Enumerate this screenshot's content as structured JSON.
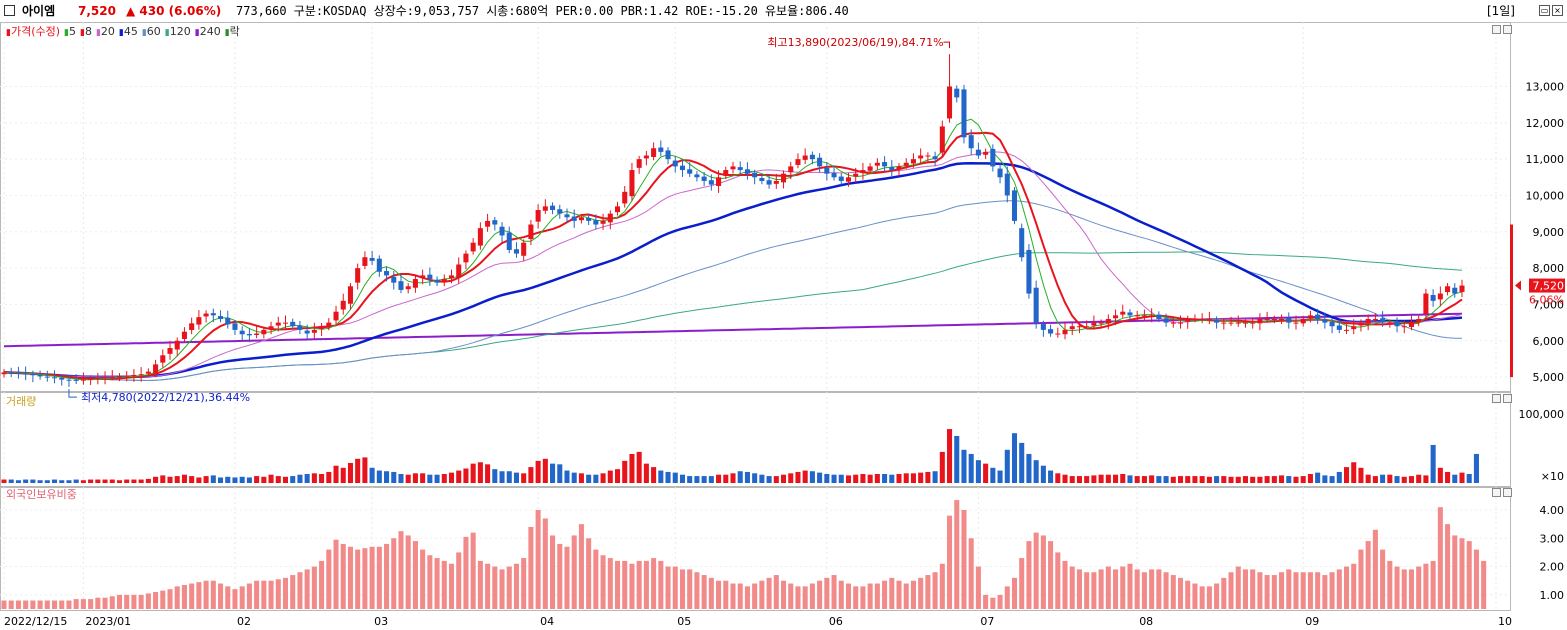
{
  "header": {
    "name": "아이엠",
    "price": "7,520",
    "change": "▲ 430 (6.06%)",
    "info": "773,660  구분:KOSDAQ 상장수:9,053,757 시총:680억 PER:0.00 PBR:1.42 ROE:-15.20 유보율:806.40",
    "period": "[1일]"
  },
  "colors": {
    "up": "#e8141c",
    "down": "#2166c8",
    "ma5": "#27b027",
    "ma8": "#e8141c",
    "ma20": "#cc66cc",
    "ma45": "#0a1ecc",
    "ma60": "#6a8ec8",
    "ma120": "#3aa88a",
    "ma240": "#8a1ec8",
    "foreign": "#f28a8a",
    "label": "#c8a020"
  },
  "price_panel": {
    "legend": [
      {
        "t": "가격(수정)",
        "c": "#e8141c"
      },
      {
        "t": "5",
        "c": "#27b027"
      },
      {
        "t": "8",
        "c": "#e8141c"
      },
      {
        "t": "20",
        "c": "#cc66cc"
      },
      {
        "t": "45",
        "c": "#0a1ecc"
      },
      {
        "t": "60",
        "c": "#6a8ec8"
      },
      {
        "t": "120",
        "c": "#3aa88a"
      },
      {
        "t": "240",
        "c": "#8a1ec8"
      },
      {
        "t": "락",
        "c": "#2e8b2e"
      }
    ],
    "high_label": "최고13,890(2023/06/19),84.71%",
    "low_label": "최저4,780(2022/12/21),36.44%",
    "last_price_tag": "7,520",
    "last_change_tag": "6.06%"
  },
  "volume_panel": {
    "label": "거래량",
    "multiplier": "×10"
  },
  "foreign_panel": {
    "label": "외국인보유비중"
  },
  "chart_data": [
    {
      "type": "candlestick",
      "title": "가격(수정)",
      "y_ticks": [
        "13,000",
        "12,000",
        "11,000",
        "10,000",
        "9,000",
        "8,000",
        "7,000",
        "6,000",
        "5,000"
      ],
      "ylim": [
        4700,
        14500
      ],
      "x_ticks": [
        "2022/12/15",
        "2023/01",
        "02",
        "03",
        "04",
        "05",
        "06",
        "07",
        "08",
        "09",
        "10"
      ],
      "high": {
        "value": 13890,
        "date": "2023/06/19"
      },
      "low": {
        "value": 4780,
        "date": "2022/12/21"
      },
      "last": 7520,
      "close": [
        5130,
        5120,
        5100,
        5080,
        5050,
        5020,
        4990,
        4970,
        4930,
        4920,
        4900,
        4930,
        4960,
        4990,
        5000,
        5000,
        5020,
        5040,
        5060,
        5080,
        5150,
        5350,
        5600,
        5800,
        6000,
        6250,
        6480,
        6650,
        6750,
        6700,
        6600,
        6450,
        6300,
        6180,
        6150,
        6200,
        6300,
        6400,
        6500,
        6500,
        6400,
        6300,
        6200,
        6300,
        6400,
        6500,
        6800,
        7100,
        7500,
        8000,
        8300,
        8200,
        7900,
        7800,
        7600,
        7400,
        7500,
        7700,
        7800,
        7700,
        7600,
        7700,
        7800,
        8100,
        8400,
        8700,
        9100,
        9300,
        9200,
        8900,
        8500,
        8400,
        8700,
        9200,
        9600,
        9700,
        9600,
        9500,
        9400,
        9300,
        9400,
        9300,
        9200,
        9300,
        9500,
        9700,
        10100,
        10700,
        11000,
        11100,
        11300,
        11200,
        11000,
        10800,
        10700,
        10600,
        10500,
        10400,
        10300,
        10500,
        10700,
        10800,
        10700,
        10600,
        10500,
        10400,
        10300,
        10400,
        10600,
        10800,
        11000,
        11100,
        11000,
        10800,
        10600,
        10500,
        10400,
        10500,
        10600,
        10700,
        10800,
        10900,
        10800,
        10700,
        10800,
        10900,
        11000,
        11100,
        11100,
        11000,
        11900,
        13000,
        12700,
        11600,
        11300,
        11100,
        11200,
        10800,
        10500,
        10000,
        9300,
        8300,
        7300,
        6500,
        6300,
        6200,
        6200,
        6300,
        6400,
        6400,
        6400,
        6500,
        6500,
        6600,
        6700,
        6800,
        6700,
        6700,
        6700,
        6700,
        6600,
        6500,
        6500,
        6500,
        6600,
        6600,
        6600,
        6600,
        6500,
        6500,
        6500,
        6500,
        6500,
        6500,
        6600,
        6600,
        6600,
        6600,
        6500,
        6500,
        6600,
        6700,
        6600,
        6500,
        6400,
        6300,
        6300,
        6400,
        6500,
        6600,
        6600,
        6500,
        6500,
        6400,
        6400,
        6500,
        6600,
        7300,
        7100,
        7300,
        7500,
        7300,
        7520
      ],
      "series": [
        {
          "name": "5",
          "period": 5
        },
        {
          "name": "8",
          "period": 8
        },
        {
          "name": "20",
          "period": 20
        },
        {
          "name": "45",
          "period": 45
        },
        {
          "name": "60",
          "period": 60
        },
        {
          "name": "120",
          "period": 120
        },
        {
          "name": "240",
          "period": 240
        }
      ]
    },
    {
      "type": "bar",
      "title": "거래량",
      "y_ticks": [
        "100,000"
      ],
      "ylim": [
        0,
        120000
      ],
      "values": [
        5000,
        5000,
        4000,
        5000,
        5000,
        4000,
        4000,
        5000,
        4000,
        4000,
        5000,
        4000,
        5000,
        5000,
        5000,
        5000,
        4000,
        5000,
        5000,
        5000,
        6000,
        9000,
        11000,
        9000,
        10000,
        12000,
        10000,
        8000,
        10000,
        11000,
        8000,
        9000,
        8000,
        9000,
        8000,
        10000,
        9000,
        12000,
        10000,
        9000,
        10000,
        12000,
        13000,
        14000,
        13000,
        16000,
        25000,
        22000,
        29000,
        35000,
        37000,
        22000,
        18000,
        17000,
        16000,
        13000,
        12000,
        14000,
        14000,
        12000,
        12000,
        13000,
        15000,
        18000,
        21000,
        28000,
        30000,
        27000,
        20000,
        17000,
        17000,
        15000,
        14000,
        23000,
        32000,
        35000,
        28000,
        27000,
        18000,
        15000,
        14000,
        12000,
        12000,
        14000,
        18000,
        20000,
        32000,
        42000,
        45000,
        28000,
        23000,
        18000,
        16000,
        15000,
        12000,
        10000,
        10000,
        10000,
        10000,
        12000,
        12000,
        14000,
        17000,
        16000,
        14000,
        12000,
        10000,
        10000,
        12000,
        14000,
        16000,
        18000,
        17000,
        15000,
        13000,
        12000,
        12000,
        11000,
        12000,
        13000,
        12000,
        13000,
        13000,
        12000,
        13000,
        14000,
        14000,
        15000,
        16000,
        17000,
        45000,
        78000,
        68000,
        48000,
        42000,
        33000,
        28000,
        22000,
        18000,
        48000,
        72000,
        58000,
        42000,
        33000,
        25000,
        18000,
        14000,
        12000,
        10000,
        10000,
        10000,
        11000,
        12000,
        12000,
        12000,
        13000,
        11000,
        10000,
        10000,
        11000,
        10000,
        10000,
        9000,
        10000,
        10000,
        10000,
        10000,
        9000,
        10000,
        10000,
        9000,
        9000,
        10000,
        9000,
        9000,
        10000,
        10000,
        11000,
        10000,
        9000,
        10000,
        13000,
        15000,
        11000,
        10000,
        16000,
        23000,
        30000,
        22000,
        12000,
        10000,
        12000,
        12000,
        10000,
        9000,
        10000,
        12000,
        11000,
        55000,
        22000,
        16000,
        12000,
        15000,
        13000,
        42000
      ]
    },
    {
      "type": "bar",
      "title": "외국인보유비중",
      "y_ticks": [
        "4.00",
        "3.00",
        "2.00",
        "1.00"
      ],
      "ylim": [
        0.5,
        4.6
      ],
      "values": [
        0.8,
        0.8,
        0.8,
        0.8,
        0.8,
        0.8,
        0.8,
        0.8,
        0.8,
        0.8,
        0.85,
        0.85,
        0.85,
        0.9,
        0.9,
        0.95,
        1.0,
        1.0,
        1.0,
        1.0,
        1.05,
        1.1,
        1.15,
        1.2,
        1.3,
        1.35,
        1.4,
        1.45,
        1.5,
        1.5,
        1.4,
        1.3,
        1.2,
        1.3,
        1.4,
        1.5,
        1.5,
        1.5,
        1.55,
        1.6,
        1.7,
        1.8,
        1.9,
        2.0,
        2.2,
        2.6,
        2.95,
        2.8,
        2.7,
        2.6,
        2.65,
        2.7,
        2.7,
        2.8,
        3.0,
        3.25,
        3.1,
        2.9,
        2.6,
        2.4,
        2.3,
        2.2,
        2.1,
        2.5,
        3.05,
        3.2,
        2.2,
        2.1,
        2.0,
        1.9,
        2.0,
        2.1,
        2.3,
        3.4,
        4.0,
        3.7,
        3.1,
        2.8,
        2.7,
        3.1,
        3.5,
        3.0,
        2.6,
        2.4,
        2.3,
        2.2,
        2.2,
        2.1,
        2.2,
        2.2,
        2.3,
        2.2,
        2.0,
        2.0,
        1.9,
        1.9,
        1.8,
        1.7,
        1.6,
        1.5,
        1.5,
        1.4,
        1.4,
        1.3,
        1.4,
        1.5,
        1.6,
        1.7,
        1.5,
        1.4,
        1.3,
        1.3,
        1.4,
        1.5,
        1.6,
        1.7,
        1.5,
        1.4,
        1.3,
        1.3,
        1.4,
        1.4,
        1.5,
        1.6,
        1.5,
        1.4,
        1.5,
        1.6,
        1.7,
        1.8,
        2.1,
        3.8,
        4.35,
        4.0,
        3.0,
        2.0,
        1.0,
        0.9,
        1.0,
        1.3,
        1.6,
        2.3,
        2.9,
        3.2,
        3.1,
        2.9,
        2.5,
        2.2,
        2.0,
        1.9,
        1.8,
        1.8,
        1.9,
        2.0,
        1.9,
        2.0,
        2.1,
        1.9,
        1.8,
        1.9,
        1.9,
        1.8,
        1.7,
        1.6,
        1.5,
        1.4,
        1.3,
        1.3,
        1.4,
        1.6,
        1.8,
        2.0,
        1.9,
        1.9,
        1.8,
        1.7,
        1.7,
        1.8,
        1.9,
        1.8,
        1.8,
        1.8,
        1.8,
        1.7,
        1.8,
        1.9,
        2.0,
        2.1,
        2.6,
        2.9,
        3.3,
        2.6,
        2.2,
        2.0,
        1.9,
        1.9,
        2.0,
        2.1,
        2.2,
        4.1,
        3.5,
        3.1,
        3.0,
        2.9,
        2.6,
        2.2
      ]
    }
  ]
}
